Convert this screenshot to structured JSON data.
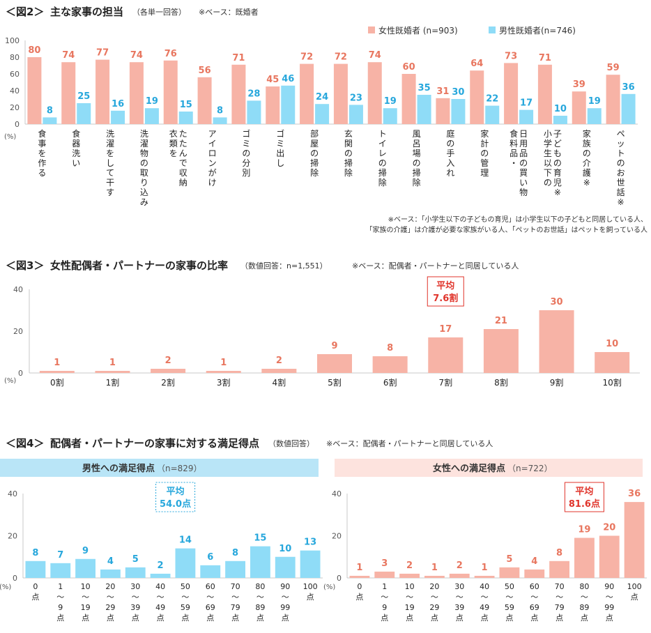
{
  "colors": {
    "female": "#f7b3a6",
    "male": "#8fdcf7",
    "female_label": "#e8765f",
    "male_label": "#27a7dc",
    "avg_red": "#e0342b",
    "avg_blue": "#27a7dc",
    "axis": "#c8c8c8",
    "tick": "#555555",
    "male_banner": "#b9e5f7",
    "female_banner": "#fde3de"
  },
  "chart_data": [
    {
      "id": "fig2",
      "type": "bar",
      "title_bracket": "＜図2＞",
      "title_main": "主な家事の担当",
      "title_note": "（各単一回答）",
      "base_note": "※ベース：既婚者",
      "unit_label": "(%)",
      "ylim": [
        0,
        100
      ],
      "yticks": [
        "0",
        "20",
        "40",
        "60",
        "80",
        "100"
      ],
      "yticks_values": [
        0,
        20,
        40,
        60,
        80,
        100
      ],
      "categories": [
        "食事を作る",
        "食器洗い",
        "洗濯をして干す",
        "洗濯物の取り込み",
        "衣類を/たたんで収納",
        "アイロンがけ",
        "ゴミの分別",
        "ゴミ出し",
        "部屋の掃除",
        "玄関の掃除",
        "トイレの掃除",
        "風呂場の掃除",
        "庭の手入れ",
        "家計の管理",
        "食料品・/日用品の買い物",
        "小学生以下の/子どもの育児※",
        "家族の介護※",
        "ペットのお世話※"
      ],
      "series": [
        {
          "name": "女性既婚者 (n=903)",
          "values": [
            80,
            74,
            77,
            74,
            76,
            56,
            71,
            45,
            72,
            72,
            74,
            60,
            31,
            64,
            73,
            71,
            39,
            59
          ]
        },
        {
          "name": "男性既婚者(n=746)",
          "values": [
            8,
            25,
            16,
            19,
            15,
            8,
            28,
            46,
            24,
            23,
            19,
            35,
            30,
            22,
            17,
            10,
            19,
            36
          ]
        }
      ],
      "footnote_lines": [
        "※ベース：「小学生以下の子どもの育児」は小学生以下の子どもと同居している人、",
        "「家族の介護」は介護が必要な家族がいる人、「ペットのお世話」はペットを飼っている人"
      ]
    },
    {
      "id": "fig3",
      "type": "bar",
      "title_bracket": "＜図3＞",
      "title_main": "女性配偶者・パートナーの家事の比率",
      "title_note": "（数値回答：n=1,551）",
      "base_note": "※ベース：配偶者・パートナーと同居している人",
      "unit_label": "(%)",
      "ylim": [
        0,
        40
      ],
      "yticks": [
        "0",
        "20",
        "40"
      ],
      "yticks_values": [
        0,
        20,
        40
      ],
      "categories": [
        "0割",
        "1割",
        "2割",
        "3割",
        "4割",
        "5割",
        "6割",
        "7割",
        "8割",
        "9割",
        "10割"
      ],
      "values": [
        1,
        1,
        2,
        1,
        2,
        9,
        8,
        17,
        21,
        30,
        10
      ],
      "average_line1": "平均",
      "average_line2": "7.6割"
    }
  ],
  "fig4": {
    "title_bracket": "＜図4＞",
    "title_main": "配偶者・パートナーの家事に対する満足得点",
    "title_note": "（数値回答）",
    "base_note": "※ベース：配偶者・パートナーと同居している人",
    "charts": [
      {
        "id": "fig4_male",
        "type": "bar",
        "banner_label": "男性への満足得点",
        "banner_n": "（n=829）",
        "unit_label": "(%)",
        "ylim": [
          0,
          40
        ],
        "yticks": [
          "0",
          "20",
          "40"
        ],
        "yticks_values": [
          0,
          20,
          40
        ],
        "categories": [
          "0/点",
          "1/〜/9/点",
          "10/〜/19/点",
          "20/〜/29/点",
          "30/〜/39/点",
          "40/〜/49/点",
          "50/〜/59/点",
          "60/〜/69/点",
          "70/〜/79/点",
          "80/〜/89/点",
          "90/〜/99/点",
          "100/点"
        ],
        "values": [
          8,
          7,
          9,
          4,
          5,
          2,
          14,
          6,
          8,
          15,
          10,
          13
        ],
        "average_line1": "平均",
        "average_line2": "54.0点"
      },
      {
        "id": "fig4_female",
        "type": "bar",
        "banner_label": "女性への満足得点",
        "banner_n": "（n=722）",
        "unit_label": "(%)",
        "ylim": [
          0,
          40
        ],
        "yticks": [
          "0",
          "20",
          "40"
        ],
        "yticks_values": [
          0,
          20,
          40
        ],
        "categories": [
          "0/点",
          "1/〜/9/点",
          "10/〜/19/点",
          "20/〜/29/点",
          "30/〜/39/点",
          "40/〜/49/点",
          "50/〜/59/点",
          "60/〜/69/点",
          "70/〜/79/点",
          "80/〜/89/点",
          "90/〜/99/点",
          "100/点"
        ],
        "values": [
          1,
          3,
          2,
          1,
          2,
          1,
          5,
          4,
          8,
          19,
          20,
          36
        ],
        "average_line1": "平均",
        "average_line2": "81.6点"
      }
    ]
  }
}
